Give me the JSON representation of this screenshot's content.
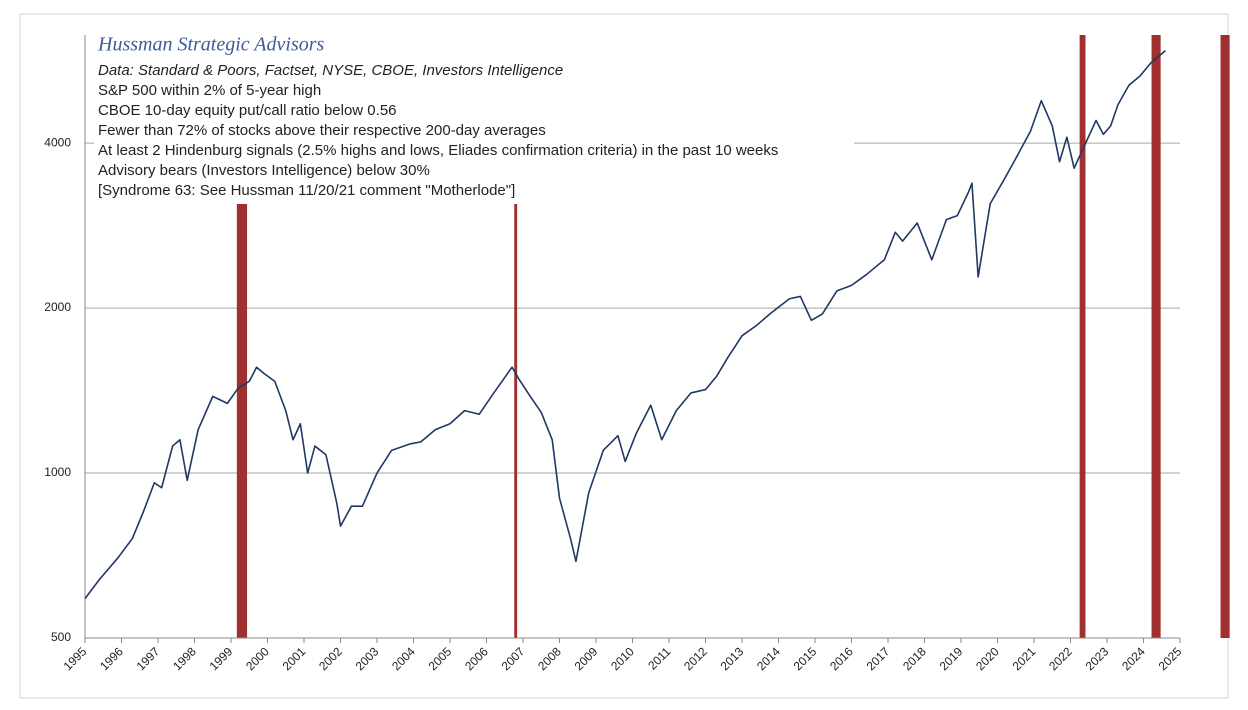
{
  "chart_data": {
    "type": "line",
    "title": "Hussman Strategic Advisors",
    "subtitle": "Data: Standard & Poors, Factset, NYSE, CBOE, Investors Intelligence",
    "notes": [
      "S&P 500 within 2% of 5-year high",
      "CBOE 10-day equity put/call ratio below 0.56",
      "Fewer than 72% of stocks above their respective 200-day averages",
      "At least 2 Hindenburg signals (2.5% highs and lows, Eliades confirmation criteria) in the past 10 weeks",
      "Advisory bears (Investors Intelligence) below 30%",
      "[Syndrome 63:  See Hussman 11/20/21 comment \"Motherlode\"]"
    ],
    "log_scale": true,
    "grid": true,
    "xlim": [
      1995,
      2025
    ],
    "xticks": [
      1995,
      1996,
      1997,
      1998,
      1999,
      2000,
      2001,
      2002,
      2003,
      2004,
      2005,
      2006,
      2007,
      2008,
      2009,
      2010,
      2011,
      2012,
      2013,
      2014,
      2015,
      2016,
      2017,
      2018,
      2019,
      2020,
      2021,
      2022,
      2023,
      2024,
      2025
    ],
    "ylim": [
      500,
      6300
    ],
    "yticks": [
      500,
      1000,
      2000,
      4000
    ],
    "signal_color": "#a0302f",
    "signals": [
      [
        1999.16,
        1999.44
      ],
      [
        2006.76,
        2006.84
      ],
      [
        2022.25,
        2022.41
      ],
      [
        2024.22,
        2024.47
      ],
      [
        2026.11,
        2026.36
      ]
    ],
    "series": [
      {
        "color": "#1f3864",
        "x": [
          1995.0,
          1995.4,
          1995.9,
          1996.3,
          1996.6,
          1996.9,
          1997.1,
          1997.4,
          1997.6,
          1997.8,
          1998.1,
          1998.5,
          1998.9,
          1999.2,
          1999.5,
          1999.7,
          1999.9,
          2000.2,
          2000.5,
          2000.7,
          2000.9,
          2001.1,
          2001.3,
          2001.6,
          2001.9,
          2002.0,
          2002.3,
          2002.6,
          2003.0,
          2003.4,
          2003.9,
          2004.2,
          2004.6,
          2005.0,
          2005.4,
          2005.8,
          2006.2,
          2006.7,
          2006.9,
          2007.2,
          2007.5,
          2007.8,
          2008.0,
          2008.3,
          2008.45,
          2008.8,
          2009.2,
          2009.6,
          2009.8,
          2010.1,
          2010.5,
          2010.8,
          2011.2,
          2011.6,
          2012.0,
          2012.3,
          2012.6,
          2013.0,
          2013.4,
          2013.8,
          2014.3,
          2014.6,
          2014.9,
          2015.2,
          2015.6,
          2016.0,
          2016.4,
          2016.9,
          2017.2,
          2017.4,
          2017.8,
          2018.2,
          2018.6,
          2018.9,
          2019.2,
          2019.3,
          2019.47,
          2019.8,
          2020.2,
          2020.5,
          2020.9,
          2021.2,
          2021.5,
          2021.7,
          2021.9,
          2022.1,
          2022.3,
          2022.7,
          2022.9,
          2023.1,
          2023.3,
          2023.6,
          2023.9,
          2024.2,
          2024.6
        ],
        "values": [
          590,
          640,
          700,
          760,
          850,
          960,
          940,
          1120,
          1150,
          970,
          1200,
          1380,
          1340,
          1430,
          1470,
          1560,
          1520,
          1470,
          1300,
          1150,
          1230,
          1000,
          1120,
          1080,
          880,
          800,
          870,
          870,
          1000,
          1100,
          1130,
          1140,
          1200,
          1230,
          1300,
          1280,
          1400,
          1560,
          1480,
          1380,
          1290,
          1150,
          900,
          760,
          690,
          920,
          1100,
          1170,
          1050,
          1180,
          1330,
          1150,
          1300,
          1400,
          1420,
          1500,
          1620,
          1780,
          1860,
          1960,
          2080,
          2100,
          1900,
          1950,
          2150,
          2200,
          2300,
          2450,
          2750,
          2650,
          2860,
          2450,
          2900,
          2950,
          3250,
          3380,
          2280,
          3100,
          3450,
          3750,
          4200,
          4780,
          4300,
          3700,
          4100,
          3600,
          3850,
          4400,
          4150,
          4300,
          4700,
          5100,
          5300,
          5600,
          5900
        ]
      }
    ]
  }
}
